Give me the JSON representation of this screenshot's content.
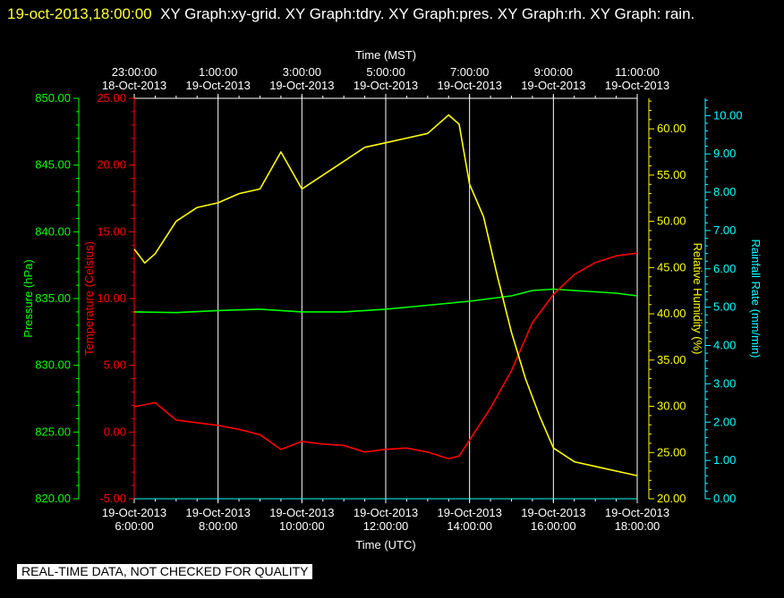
{
  "header": {
    "timestamp": "19-oct-2013,18:00:00",
    "graphs": "XY Graph:xy-grid.  XY Graph:tdry.  XY Graph:pres.  XY Graph:rh.  XY Graph: rain."
  },
  "banner": "REAL-TIME DATA, NOT CHECKED FOR QUALITY",
  "colors": {
    "background": "#000000",
    "axes": "#ffffff",
    "grid": "#ffffff",
    "temperature": "#ff0000",
    "pressure": "#00ff00",
    "humidity": "#ffff00",
    "rain": "#00ffff"
  },
  "chart_data": {
    "type": "line",
    "grid": true,
    "x_bottom": {
      "label": "Time (UTC)",
      "range": [
        "19-Oct-2013 06:00:00",
        "19-Oct-2013 18:00:00"
      ],
      "ticks": [
        {
          "date": "19-Oct-2013",
          "time": "6:00:00"
        },
        {
          "date": "19-Oct-2013",
          "time": "8:00:00"
        },
        {
          "date": "19-Oct-2013",
          "time": "10:00:00"
        },
        {
          "date": "19-Oct-2013",
          "time": "12:00:00"
        },
        {
          "date": "19-Oct-2013",
          "time": "14:00:00"
        },
        {
          "date": "19-Oct-2013",
          "time": "16:00:00"
        },
        {
          "date": "19-Oct-2013",
          "time": "18:00:00"
        }
      ]
    },
    "x_top": {
      "label": "Time (MST)",
      "ticks": [
        {
          "time": "23:00:00",
          "date": "18-Oct-2013"
        },
        {
          "time": "1:00:00",
          "date": "19-Oct-2013"
        },
        {
          "time": "3:00:00",
          "date": "19-Oct-2013"
        },
        {
          "time": "5:00:00",
          "date": "19-Oct-2013"
        },
        {
          "time": "7:00:00",
          "date": "19-Oct-2013"
        },
        {
          "time": "9:00:00",
          "date": "19-Oct-2013"
        },
        {
          "time": "11:00:00",
          "date": "19-Oct-2013"
        }
      ]
    },
    "y_axes": {
      "pressure": {
        "label": "Pressure (hPa)",
        "range": [
          820,
          850
        ],
        "ticks": [
          "820.00",
          "825.00",
          "830.00",
          "835.00",
          "840.00",
          "845.00",
          "850.00"
        ]
      },
      "temperature": {
        "label": "Temperature (Celsius)",
        "range": [
          -5,
          25
        ],
        "ticks": [
          "-5.00",
          "0.00",
          "5.00",
          "10.00",
          "15.00",
          "20.00",
          "25.00"
        ]
      },
      "humidity": {
        "label": "Relative Humidity (%)",
        "range": [
          20,
          63.3
        ],
        "ticks": [
          "20.00",
          "25.00",
          "30.00",
          "35.00",
          "40.00",
          "45.00",
          "50.00",
          "55.00",
          "60.00"
        ]
      },
      "rain": {
        "label": "Rainfall Rate (mm/min)",
        "range": [
          0,
          10.45
        ],
        "ticks": [
          "0.00",
          "1.00",
          "2.00",
          "3.00",
          "4.00",
          "5.00",
          "6.00",
          "7.00",
          "8.00",
          "9.00",
          "10.00"
        ]
      }
    },
    "series": [
      {
        "axis": "pressure",
        "x_utc": [
          "06:00",
          "07:00",
          "08:00",
          "09:00",
          "10:00",
          "11:00",
          "12:00",
          "13:00",
          "14:00",
          "15:00",
          "15:30",
          "16:00",
          "16:30",
          "17:00",
          "17:30",
          "18:00"
        ],
        "values": [
          834.0,
          833.95,
          834.1,
          834.2,
          834.0,
          834.0,
          834.2,
          834.5,
          834.8,
          835.2,
          835.6,
          835.7,
          835.6,
          835.5,
          835.4,
          835.2
        ]
      },
      {
        "axis": "temperature",
        "x_utc": [
          "06:00",
          "06:30",
          "07:00",
          "07:30",
          "08:00",
          "08:30",
          "09:00",
          "09:30",
          "10:00",
          "10:30",
          "11:00",
          "11:30",
          "12:00",
          "12:30",
          "13:00",
          "13:30",
          "13:45",
          "14:00",
          "14:30",
          "15:00",
          "15:30",
          "16:00",
          "16:30",
          "17:00",
          "17:30",
          "18:00"
        ],
        "values": [
          1.9,
          2.2,
          0.9,
          0.7,
          0.5,
          0.2,
          -0.2,
          -1.3,
          -0.7,
          -0.9,
          -1.0,
          -1.5,
          -1.3,
          -1.2,
          -1.5,
          -2.0,
          -1.8,
          -0.6,
          1.8,
          4.6,
          8.2,
          10.3,
          11.8,
          12.7,
          13.2,
          13.4
        ]
      },
      {
        "axis": "humidity",
        "x_utc": [
          "06:00",
          "06:15",
          "06:30",
          "07:00",
          "07:30",
          "08:00",
          "08:30",
          "09:00",
          "09:30",
          "10:00",
          "10:30",
          "11:00",
          "11:30",
          "12:00",
          "12:30",
          "13:00",
          "13:30",
          "13:45",
          "14:00",
          "14:20",
          "14:40",
          "15:00",
          "15:20",
          "15:40",
          "16:00",
          "16:30",
          "17:00",
          "17:30",
          "18:00"
        ],
        "values": [
          47.0,
          45.5,
          46.5,
          50.0,
          51.5,
          52.0,
          53.0,
          53.5,
          57.5,
          53.5,
          55.0,
          56.5,
          58.0,
          58.5,
          59.0,
          59.5,
          61.5,
          60.5,
          54.0,
          50.5,
          44.0,
          38.0,
          33.0,
          29.0,
          25.5,
          24.0,
          23.5,
          23.0,
          22.5
        ]
      },
      {
        "axis": "rain",
        "x_utc": [
          "06:00",
          "18:00"
        ],
        "values": [
          0,
          0
        ]
      }
    ]
  }
}
